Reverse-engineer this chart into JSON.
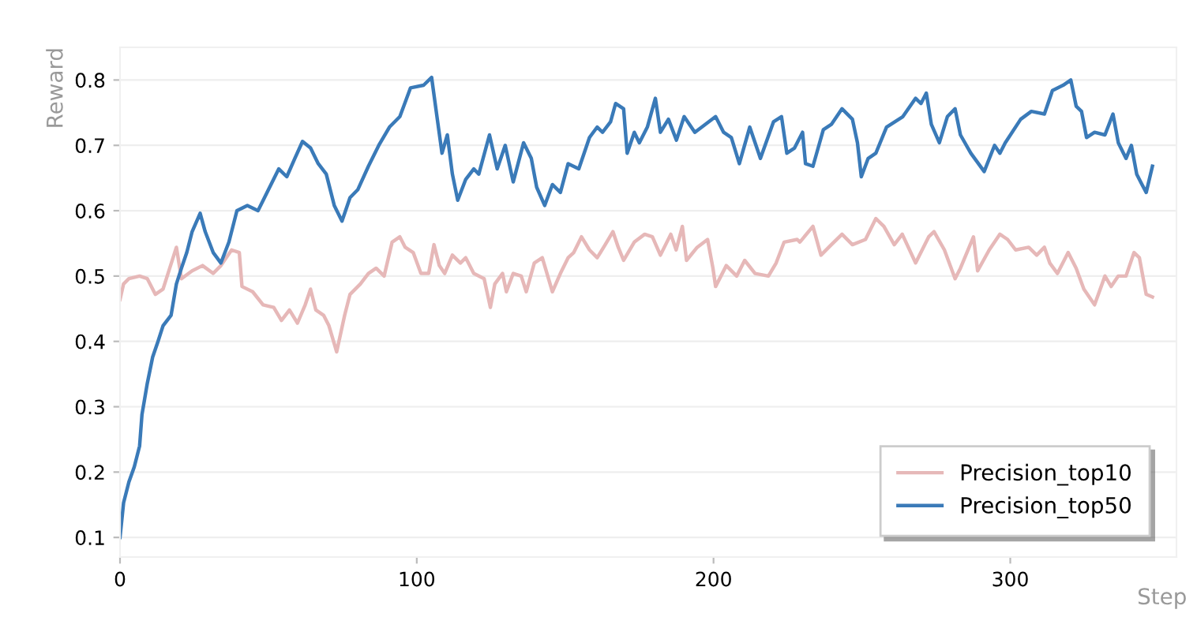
{
  "chart_data": {
    "type": "line",
    "xlabel": "Step",
    "ylabel": "Reward",
    "xlim": [
      0,
      356
    ],
    "ylim": [
      0.07,
      0.85
    ],
    "xticks": [
      0,
      100,
      200,
      300
    ],
    "yticks": [
      0.1,
      0.2,
      0.3,
      0.4,
      0.5,
      0.6,
      0.7,
      0.8
    ],
    "grid": "y",
    "legend": "bottom right",
    "line_style": "solid",
    "series": [
      {
        "name": "Precision_top10",
        "color": "#e6b8b8",
        "x": [
          0,
          1.2,
          3,
          6.6,
          9.2,
          11.9,
          14.5,
          19,
          20.7,
          24.3,
          27.8,
          31.4,
          34,
          37.6,
          40.2,
          41.1,
          44.7,
          48.2,
          51.8,
          54.4,
          57.1,
          59.8,
          62.4,
          64.2,
          66,
          68.6,
          70.4,
          73,
          75.7,
          77.5,
          81,
          83.7,
          86.3,
          89,
          91.7,
          94.3,
          96.1,
          98.8,
          101.4,
          104,
          105.8,
          107.6,
          109.4,
          112,
          114.7,
          116.5,
          119.2,
          122.7,
          124.8,
          126.3,
          128.9,
          130.2,
          132.5,
          135.2,
          136.9,
          139.6,
          142.3,
          145.7,
          148.4,
          151,
          152.9,
          155.5,
          158.2,
          160.8,
          163.5,
          166.1,
          167.9,
          169.7,
          173.3,
          176.8,
          179.4,
          182.1,
          185.6,
          187.4,
          189.5,
          190.9,
          194.5,
          198,
          199.8,
          200.7,
          204.3,
          207.8,
          210.5,
          214,
          218.5,
          221.1,
          223.8,
          228.2,
          229.1,
          233.5,
          236.2,
          239.7,
          243.3,
          246.8,
          251.2,
          254.7,
          257.4,
          260.9,
          263.6,
          268.1,
          272.5,
          274.3,
          277.8,
          281.4,
          283.2,
          287.6,
          289,
          292.9,
          296.5,
          299.1,
          301.8,
          306.2,
          308.9,
          311.5,
          313.3,
          315.9,
          319.5,
          322.2,
          324.8,
          328.4,
          331.9,
          334,
          336.4,
          339,
          341.7,
          343.5,
          345.8,
          347.9
        ],
        "values": [
          0.464,
          0.488,
          0.496,
          0.5,
          0.496,
          0.472,
          0.48,
          0.544,
          0.496,
          0.508,
          0.516,
          0.504,
          0.516,
          0.54,
          0.536,
          0.484,
          0.476,
          0.456,
          0.452,
          0.432,
          0.448,
          0.428,
          0.456,
          0.48,
          0.448,
          0.44,
          0.424,
          0.384,
          0.44,
          0.472,
          0.488,
          0.504,
          0.512,
          0.5,
          0.552,
          0.56,
          0.544,
          0.536,
          0.504,
          0.504,
          0.548,
          0.516,
          0.504,
          0.532,
          0.52,
          0.528,
          0.504,
          0.496,
          0.452,
          0.488,
          0.504,
          0.476,
          0.504,
          0.5,
          0.476,
          0.52,
          0.528,
          0.476,
          0.504,
          0.528,
          0.536,
          0.56,
          0.54,
          0.528,
          0.548,
          0.568,
          0.544,
          0.524,
          0.552,
          0.564,
          0.56,
          0.532,
          0.564,
          0.54,
          0.576,
          0.524,
          0.544,
          0.556,
          0.512,
          0.484,
          0.516,
          0.5,
          0.524,
          0.504,
          0.5,
          0.52,
          0.552,
          0.556,
          0.552,
          0.576,
          0.532,
          0.548,
          0.564,
          0.548,
          0.556,
          0.588,
          0.576,
          0.548,
          0.564,
          0.52,
          0.56,
          0.568,
          0.54,
          0.496,
          0.512,
          0.56,
          0.508,
          0.54,
          0.564,
          0.556,
          0.54,
          0.544,
          0.532,
          0.544,
          0.52,
          0.504,
          0.536,
          0.512,
          0.48,
          0.456,
          0.5,
          0.484,
          0.5,
          0.5,
          0.536,
          0.528,
          0.472,
          0.468
        ]
      },
      {
        "name": "Precision_top50",
        "color": "#3a7ab8",
        "x": [
          0,
          1.2,
          3,
          4.8,
          6.6,
          7.4,
          9.2,
          11,
          12.8,
          14.5,
          17.2,
          19,
          20.7,
          22.5,
          24.3,
          27,
          28.7,
          31.4,
          34,
          36.7,
          39.4,
          42.9,
          46.5,
          50,
          53.5,
          56.2,
          58.9,
          61.5,
          64.2,
          66.8,
          69.5,
          72.2,
          74.8,
          77.5,
          80.1,
          83.7,
          87.2,
          90.8,
          94.3,
          97.9,
          102.3,
          105,
          106.8,
          108.5,
          110.3,
          112,
          113.8,
          116.5,
          119.2,
          120.9,
          124.5,
          127.1,
          129.8,
          132.5,
          136,
          138.6,
          140.4,
          143.1,
          145.7,
          148.4,
          151,
          154.6,
          158.2,
          160.8,
          162.6,
          165.3,
          167,
          169.7,
          170.9,
          173.3,
          175,
          177.7,
          180.4,
          182.1,
          184.8,
          187.5,
          190.1,
          193.7,
          200.7,
          203.4,
          206,
          208.7,
          212.2,
          215.8,
          220.2,
          222.9,
          224.7,
          227.3,
          230,
          231,
          233.5,
          237,
          239.7,
          243.3,
          246.8,
          248.5,
          249.8,
          252.1,
          254.7,
          258.3,
          263.8,
          268.1,
          269.9,
          271.7,
          273.4,
          276.1,
          278.8,
          281.4,
          283.2,
          286.7,
          291.2,
          294.7,
          296.5,
          298.3,
          303.5,
          307.1,
          311.5,
          314.2,
          317.8,
          320.4,
          322.2,
          324,
          325.7,
          328.4,
          331.9,
          334.6,
          336.4,
          339,
          340.8,
          342.6,
          344.4,
          345.8,
          347.9
        ],
        "values": [
          0.1,
          0.153,
          0.185,
          0.208,
          0.24,
          0.288,
          0.336,
          0.376,
          0.4,
          0.424,
          0.44,
          0.488,
          0.512,
          0.536,
          0.568,
          0.596,
          0.568,
          0.536,
          0.52,
          0.552,
          0.6,
          0.608,
          0.6,
          0.632,
          0.664,
          0.652,
          0.68,
          0.706,
          0.696,
          0.672,
          0.656,
          0.608,
          0.584,
          0.62,
          0.632,
          0.668,
          0.7,
          0.728,
          0.744,
          0.788,
          0.792,
          0.804,
          0.744,
          0.688,
          0.716,
          0.656,
          0.616,
          0.648,
          0.664,
          0.656,
          0.716,
          0.664,
          0.7,
          0.644,
          0.704,
          0.68,
          0.636,
          0.608,
          0.64,
          0.628,
          0.672,
          0.664,
          0.712,
          0.728,
          0.72,
          0.736,
          0.764,
          0.756,
          0.688,
          0.72,
          0.704,
          0.728,
          0.772,
          0.72,
          0.74,
          0.708,
          0.744,
          0.72,
          0.744,
          0.72,
          0.712,
          0.672,
          0.728,
          0.68,
          0.736,
          0.744,
          0.688,
          0.696,
          0.72,
          0.672,
          0.668,
          0.724,
          0.732,
          0.756,
          0.74,
          0.704,
          0.652,
          0.68,
          0.688,
          0.728,
          0.744,
          0.772,
          0.764,
          0.78,
          0.732,
          0.704,
          0.744,
          0.756,
          0.716,
          0.688,
          0.66,
          0.7,
          0.688,
          0.704,
          0.74,
          0.752,
          0.748,
          0.784,
          0.792,
          0.8,
          0.76,
          0.752,
          0.712,
          0.72,
          0.716,
          0.748,
          0.704,
          0.68,
          0.7,
          0.656,
          0.64,
          0.628,
          0.668
        ]
      }
    ]
  }
}
